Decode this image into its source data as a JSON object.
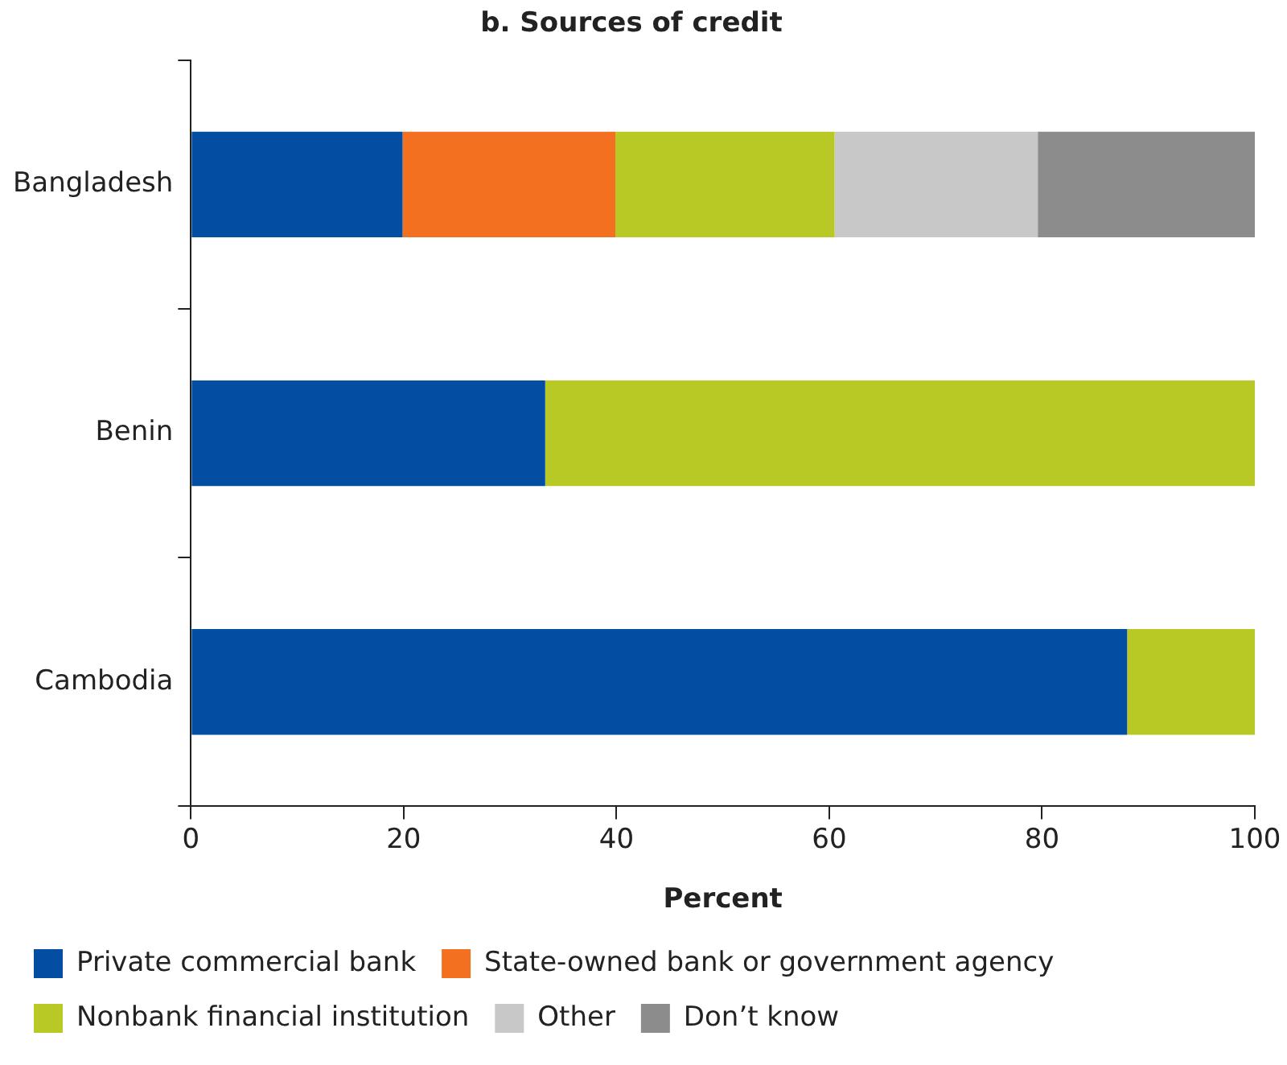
{
  "chart_data": {
    "type": "bar",
    "orientation": "horizontal",
    "stacked": true,
    "title": "b. Sources of credit",
    "xlabel": "Percent",
    "categories": [
      "Bangladesh",
      "Benin",
      "Cambodia"
    ],
    "series": [
      {
        "name": "Private commercial bank",
        "color": "#034ea2",
        "values": [
          19.9,
          33.3,
          88
        ]
      },
      {
        "name": "State-owned bank or government agency",
        "color": "#f37021",
        "values": [
          20,
          0,
          0
        ]
      },
      {
        "name": "Nonbank financial institution",
        "color": "#b8c925",
        "values": [
          20.6,
          66.7,
          12
        ]
      },
      {
        "name": "Other",
        "color": "#c8c8c8",
        "values": [
          19.1,
          0,
          0
        ]
      },
      {
        "name": "Don’t know",
        "color": "#8c8c8c",
        "values": [
          20.4,
          0,
          0
        ]
      }
    ],
    "xlim": [
      0,
      100
    ],
    "xticks": [
      0,
      20,
      40,
      60,
      80,
      100
    ],
    "grid": false,
    "legend": "bottom"
  }
}
